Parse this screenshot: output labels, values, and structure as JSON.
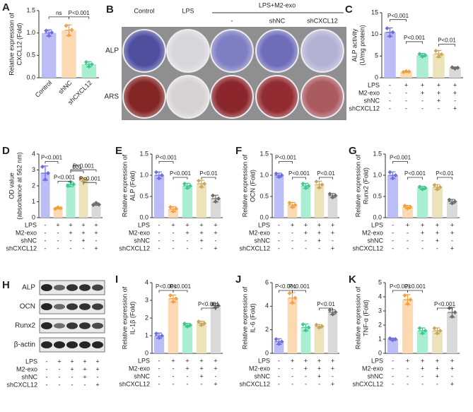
{
  "chart_data": [
    {
      "type": "bar",
      "panel": "A",
      "ylabel": [
        "Relative expression of",
        "CXCL12 (Fold)"
      ],
      "categories": [
        "Control",
        "shNC",
        "shCXCL12"
      ],
      "values": [
        1.0,
        1.06,
        0.3
      ],
      "errors": [
        0.07,
        0.12,
        0.06
      ],
      "points": [
        [
          1.05,
          0.94,
          1.01
        ],
        [
          1.16,
          0.95,
          1.07
        ],
        [
          0.35,
          0.25,
          0.3
        ]
      ],
      "ylim": [
        0,
        1.5
      ],
      "yticks": [
        {
          "value": 0,
          "label": "0.0"
        },
        {
          "value": 0.5,
          "label": "0.5"
        },
        {
          "value": 1,
          "label": "1.0"
        },
        {
          "value": 1.5,
          "label": "1.5"
        }
      ],
      "annotations": [
        "ns",
        "P<0.001"
      ],
      "colors": [
        "#bcbcf6",
        "#fdd9b2",
        "#aaeed2"
      ],
      "point_colors": [
        "#6f6fe0",
        "#f2a040",
        "#3fc88f"
      ]
    },
    {
      "type": "bar",
      "panel": "C",
      "ylabel": [
        "ALP activity",
        "(U/mg protein)"
      ],
      "categories": [
        null,
        null,
        null,
        null,
        null
      ],
      "values": [
        10.5,
        1.4,
        5.2,
        5.5,
        2.3
      ],
      "errors": [
        1.0,
        0.15,
        0.4,
        0.8,
        0.2
      ],
      "points": [
        [
          11.4,
          9.6,
          10.5
        ],
        [
          1.3,
          1.5,
          1.4
        ],
        [
          5.5,
          4.9,
          5.2
        ],
        [
          6.2,
          4.9,
          5.4
        ],
        [
          2.4,
          2.1,
          2.3
        ]
      ],
      "ylim": [
        0,
        15
      ],
      "yticks": [
        0,
        5,
        10,
        15
      ],
      "annotations": [
        "P<0.001",
        "P<0.001",
        "P<0.01"
      ],
      "colors": [
        "#bcbcf6",
        "#fdd9b2",
        "#aaeed2",
        "#ede3ba",
        "#d9d9d9"
      ],
      "point_colors": [
        "#6f6fe0",
        "#f2a040",
        "#3fc88f",
        "#c8a860",
        "#6e6e6e"
      ]
    },
    {
      "type": "bar",
      "panel": "D",
      "ylabel": [
        "OD value",
        "(absorbance at 562 nm)"
      ],
      "categories": [
        null,
        null,
        null,
        null,
        null
      ],
      "values": [
        2.8,
        0.6,
        2.1,
        2.4,
        0.85
      ],
      "errors": [
        0.45,
        0.05,
        0.15,
        0.12,
        0.08
      ],
      "points": [
        [
          3.2,
          2.4,
          2.8
        ],
        [
          0.55,
          0.65,
          0.6
        ],
        [
          2.0,
          2.25,
          2.1
        ],
        [
          2.5,
          2.3,
          2.4
        ],
        [
          0.8,
          0.93,
          0.82
        ]
      ],
      "ylim": [
        0,
        4
      ],
      "yticks": [
        0,
        1,
        2,
        3,
        4
      ],
      "annotations": [
        "P<0.001",
        "001",
        "P<0.001",
        "P<0.001",
        "P<0.001"
      ],
      "colors": [
        "#bcbcf6",
        "#fdd9b2",
        "#aaeed2",
        "#ede3ba",
        "#d9d9d9"
      ],
      "point_colors": [
        "#6f6fe0",
        "#f2a040",
        "#3fc88f",
        "#c8a860",
        "#6e6e6e"
      ]
    },
    {
      "type": "bar",
      "panel": "E",
      "ylabel": [
        "Relative expression of",
        "ALP (Fold)"
      ],
      "categories": [
        null,
        null,
        null,
        null,
        null
      ],
      "values": [
        1.0,
        0.2,
        0.75,
        0.8,
        0.45
      ],
      "errors": [
        0.08,
        0.06,
        0.06,
        0.08,
        0.08
      ],
      "points": [
        [
          1.07,
          0.93,
          1.0
        ],
        [
          0.25,
          0.15,
          0.21
        ],
        [
          0.8,
          0.7,
          0.75
        ],
        [
          0.87,
          0.73,
          0.8
        ],
        [
          0.52,
          0.38,
          0.45
        ]
      ],
      "ylim": [
        0,
        1.5
      ],
      "yticks": [
        {
          "value": 0,
          "label": "0.0"
        },
        {
          "value": 0.5,
          "label": "0.5"
        },
        {
          "value": 1,
          "label": "1.0"
        },
        {
          "value": 1.5,
          "label": "1.5"
        }
      ],
      "annotations": [
        "P<0.001",
        "P<0.001",
        "P<0.01"
      ],
      "colors": [
        "#bcbcf6",
        "#fdd9b2",
        "#aaeed2",
        "#ede3ba",
        "#d9d9d9"
      ],
      "point_colors": [
        "#6f6fe0",
        "#f2a040",
        "#3fc88f",
        "#c8a860",
        "#6e6e6e"
      ]
    },
    {
      "type": "bar",
      "panel": "F",
      "ylabel": [
        "Relative expression of",
        "OCN (Fold)"
      ],
      "categories": [
        null,
        null,
        null,
        null,
        null
      ],
      "values": [
        1.0,
        0.3,
        0.75,
        0.78,
        0.52
      ],
      "errors": [
        0.05,
        0.06,
        0.06,
        0.08,
        0.05
      ],
      "points": [
        [
          1.04,
          0.96,
          1.0
        ],
        [
          0.35,
          0.25,
          0.3
        ],
        [
          0.8,
          0.7,
          0.75
        ],
        [
          0.85,
          0.71,
          0.78
        ],
        [
          0.56,
          0.48,
          0.52
        ]
      ],
      "ylim": [
        0,
        1.5
      ],
      "yticks": [
        {
          "value": 0,
          "label": "0.0"
        },
        {
          "value": 0.5,
          "label": "0.5"
        },
        {
          "value": 1,
          "label": "1.0"
        },
        {
          "value": 1.5,
          "label": "1.5"
        }
      ],
      "annotations": [
        "P<0.001",
        "P<0.001",
        "P<0.01"
      ],
      "colors": [
        "#bcbcf6",
        "#fdd9b2",
        "#aaeed2",
        "#ede3ba",
        "#d9d9d9"
      ],
      "point_colors": [
        "#6f6fe0",
        "#f2a040",
        "#3fc88f",
        "#c8a860",
        "#6e6e6e"
      ]
    },
    {
      "type": "bar",
      "panel": "G",
      "ylabel": [
        "Relative expression of",
        "Runx2 (Fold)"
      ],
      "categories": [
        null,
        null,
        null,
        null,
        null
      ],
      "values": [
        1.0,
        0.25,
        0.7,
        0.72,
        0.38
      ],
      "errors": [
        0.08,
        0.04,
        0.04,
        0.06,
        0.05
      ],
      "points": [
        [
          1.07,
          0.93,
          1.0
        ],
        [
          0.28,
          0.22,
          0.25
        ],
        [
          0.73,
          0.67,
          0.7
        ],
        [
          0.77,
          0.67,
          0.72
        ],
        [
          0.42,
          0.34,
          0.38
        ]
      ],
      "ylim": [
        0,
        1.5
      ],
      "yticks": [
        {
          "value": 0,
          "label": "0.0"
        },
        {
          "value": 0.5,
          "label": "0.5"
        },
        {
          "value": 1,
          "label": "1.0"
        },
        {
          "value": 1.5,
          "label": "1.5"
        }
      ],
      "annotations": [
        "P<0.001",
        "P<0.001",
        "P<0.01"
      ],
      "colors": [
        "#bcbcf6",
        "#fdd9b2",
        "#aaeed2",
        "#ede3ba",
        "#d9d9d9"
      ],
      "point_colors": [
        "#6f6fe0",
        "#f2a040",
        "#3fc88f",
        "#c8a860",
        "#6e6e6e"
      ]
    },
    {
      "type": "bar",
      "panel": "I",
      "ylabel": [
        "Relative expression of",
        "IL-1β (Fold)"
      ],
      "categories": [
        null,
        null,
        null,
        null,
        null
      ],
      "values": [
        1.0,
        3.1,
        1.6,
        1.7,
        2.7
      ],
      "errors": [
        0.15,
        0.2,
        0.1,
        0.12,
        0.12
      ],
      "points": [
        [
          1.12,
          0.88,
          1.0
        ],
        [
          3.28,
          2.92,
          3.1
        ],
        [
          1.68,
          1.52,
          1.6
        ],
        [
          1.8,
          1.6,
          1.7
        ],
        [
          2.8,
          2.6,
          2.7
        ]
      ],
      "ylim": [
        0,
        4
      ],
      "yticks": [
        0,
        1,
        2,
        3,
        4
      ],
      "annotations": [
        "P<0.001",
        "P<0.001",
        "P<0.001"
      ],
      "colors": [
        "#bcbcf6",
        "#fdd9b2",
        "#aaeed2",
        "#ede3ba",
        "#d9d9d9"
      ],
      "point_colors": [
        "#6f6fe0",
        "#f2a040",
        "#3fc88f",
        "#c8a860",
        "#6e6e6e"
      ]
    },
    {
      "type": "bar",
      "panel": "J",
      "ylabel": [
        "Relative expression of",
        "IL-6 (Fold)"
      ],
      "categories": [
        null,
        null,
        null,
        null,
        null
      ],
      "values": [
        1.0,
        4.7,
        2.2,
        2.3,
        3.5
      ],
      "errors": [
        0.25,
        0.45,
        0.3,
        0.15,
        0.2
      ],
      "points": [
        [
          1.2,
          0.8,
          1.0
        ],
        [
          5.1,
          4.3,
          4.7
        ],
        [
          2.45,
          1.95,
          2.2
        ],
        [
          2.42,
          2.18,
          2.3
        ],
        [
          3.68,
          3.32,
          3.5
        ]
      ],
      "ylim": [
        0,
        6
      ],
      "yticks": [
        0,
        2,
        4,
        6
      ],
      "annotations": [
        "P<0.001",
        "P<0.001",
        "P<0.01"
      ],
      "colors": [
        "#bcbcf6",
        "#fdd9b2",
        "#aaeed2",
        "#ede3ba",
        "#d9d9d9"
      ],
      "point_colors": [
        "#6f6fe0",
        "#f2a040",
        "#3fc88f",
        "#c8a860",
        "#6e6e6e"
      ]
    },
    {
      "type": "bar",
      "panel": "K",
      "ylabel": [
        "Relative expression of",
        "TNF-α (Fold)"
      ],
      "categories": [
        null,
        null,
        null,
        null,
        null
      ],
      "values": [
        1.0,
        3.8,
        1.6,
        1.6,
        2.9
      ],
      "errors": [
        0.08,
        0.35,
        0.2,
        0.2,
        0.35
      ],
      "points": [
        [
          1.06,
          0.94,
          1.0
        ],
        [
          4.1,
          3.5,
          3.8
        ],
        [
          1.78,
          1.42,
          1.6
        ],
        [
          1.78,
          1.42,
          1.6
        ],
        [
          3.2,
          2.6,
          2.9
        ]
      ],
      "ylim": [
        0,
        5
      ],
      "yticks": [
        0,
        1,
        2,
        3,
        4,
        5
      ],
      "annotations": [
        "P<0.001",
        "P<0.001",
        "P<0.001"
      ],
      "colors": [
        "#bcbcf6",
        "#fdd9b2",
        "#aaeed2",
        "#ede3ba",
        "#d9d9d9"
      ],
      "point_colors": [
        "#6f6fe0",
        "#f2a040",
        "#3fc88f",
        "#c8a860",
        "#6e6e6e"
      ]
    }
  ],
  "conditions": [
    {
      "name": "LPS",
      "signs": [
        "-",
        "+",
        "+",
        "+",
        "+"
      ]
    },
    {
      "name": "M2-exo",
      "signs": [
        "-",
        "-",
        "+",
        "+",
        "+"
      ]
    },
    {
      "name": "shNC",
      "signs": [
        "-",
        "-",
        "-",
        "+",
        "-"
      ]
    },
    {
      "name": "shCXCL12",
      "signs": [
        "-",
        "-",
        "-",
        "-",
        "+"
      ]
    }
  ],
  "panel_b": {
    "panel": "B",
    "columns": [
      "Control",
      "LPS"
    ],
    "group": "LPS+M2-exo",
    "subcolumns": [
      "-",
      "shNC",
      "shCXCL12"
    ],
    "rows": [
      "ALP",
      "ARS"
    ]
  },
  "panel_h": {
    "panel": "H",
    "rows": [
      "ALP",
      "OCN",
      "Runx2",
      "β-actin"
    ]
  }
}
